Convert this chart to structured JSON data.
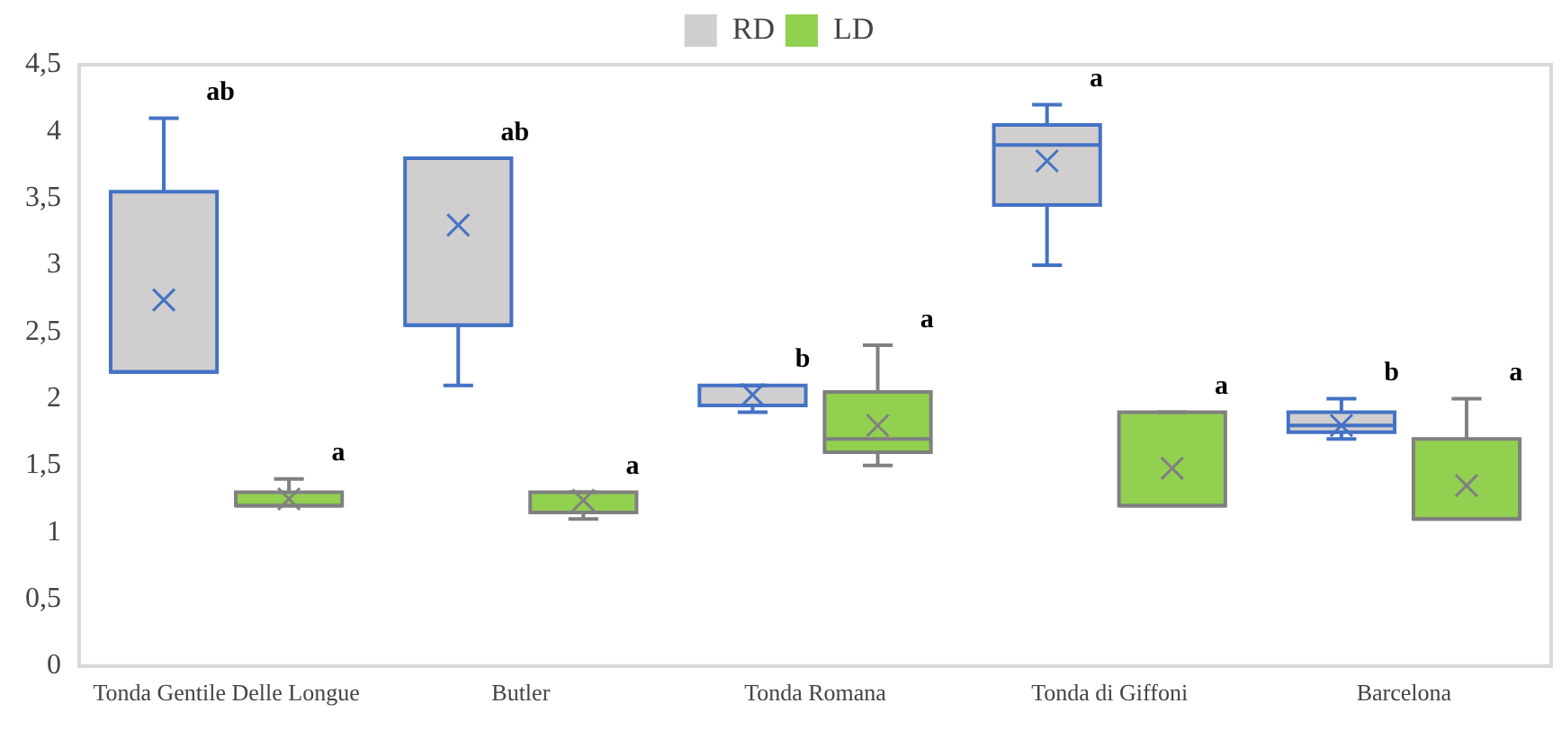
{
  "chart_data": {
    "type": "box",
    "categories": [
      "Tonda Gentile Delle Longue",
      "Butler",
      "Tonda Romana",
      "Tonda di Giffoni",
      "Barcelona"
    ],
    "series": [
      {
        "name": "RD",
        "color": "#d0cece",
        "boxes": [
          {
            "low": 2.2,
            "q1": 2.2,
            "median": 2.2,
            "q3": 3.55,
            "high": 4.1,
            "mean": 2.74
          },
          {
            "low": 2.1,
            "q1": 2.55,
            "median": 2.55,
            "q3": 3.8,
            "high": 3.8,
            "mean": 3.3
          },
          {
            "low": 1.9,
            "q1": 1.95,
            "median": 1.95,
            "q3": 2.1,
            "high": 2.1,
            "mean": 2.03
          },
          {
            "low": 3.0,
            "q1": 3.45,
            "median": 3.9,
            "q3": 4.05,
            "high": 4.2,
            "mean": 3.78
          },
          {
            "low": 1.7,
            "q1": 1.75,
            "median": 1.8,
            "q3": 1.9,
            "high": 2.0,
            "mean": 1.8
          }
        ]
      },
      {
        "name": "LD",
        "color": "#92d050",
        "boxes": [
          {
            "low": 1.2,
            "q1": 1.2,
            "median": 1.2,
            "q3": 1.3,
            "high": 1.4,
            "mean": 1.25
          },
          {
            "low": 1.1,
            "q1": 1.15,
            "median": 1.15,
            "q3": 1.3,
            "high": 1.3,
            "mean": 1.24
          },
          {
            "low": 1.5,
            "q1": 1.6,
            "median": 1.7,
            "q3": 2.05,
            "high": 2.4,
            "mean": 1.8
          },
          {
            "low": 1.2,
            "q1": 1.2,
            "median": 1.2,
            "q3": 1.9,
            "high": 1.9,
            "mean": 1.48
          },
          {
            "low": 1.1,
            "q1": 1.1,
            "median": 1.1,
            "q3": 1.7,
            "high": 2.0,
            "mean": 1.35
          }
        ]
      }
    ],
    "ylim": [
      0,
      4.5
    ],
    "yticks": [
      0,
      {
        "value": 0.5,
        "label": "0,5"
      },
      1,
      {
        "value": 1.5,
        "label": "1,5"
      },
      2,
      {
        "value": 2.5,
        "label": "2,5"
      },
      3,
      {
        "value": 3.5,
        "label": "3,5"
      },
      4,
      {
        "value": 4.5,
        "label": "4,5"
      }
    ],
    "grid": false,
    "legend": "top",
    "marker": "cross",
    "annotations": [
      "ab",
      "a",
      "ab",
      "a",
      "b",
      "a",
      "a",
      "a",
      "b",
      "a"
    ]
  }
}
